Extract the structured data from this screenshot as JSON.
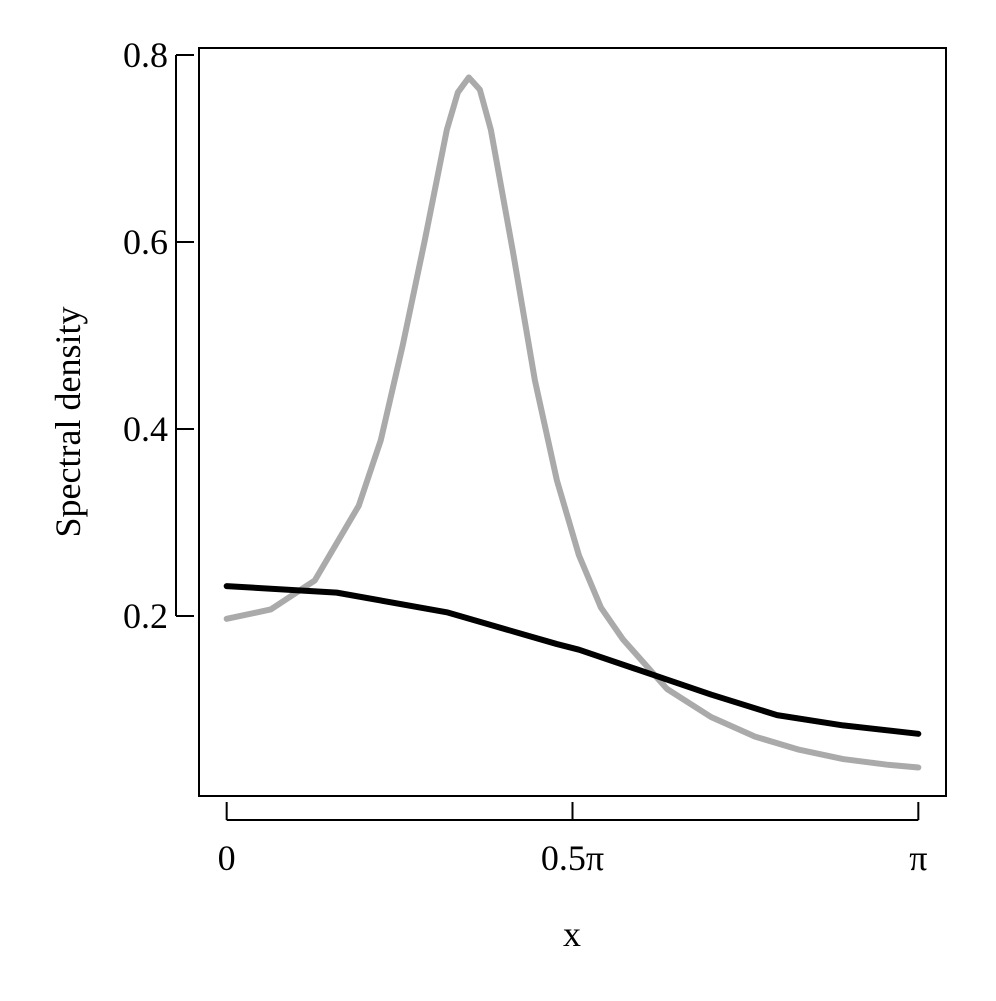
{
  "chart_data": {
    "type": "line",
    "xlabel": "x",
    "ylabel": "Spectral density",
    "xlim": [
      -0.1257,
      3.2673
    ],
    "ylim": [
      0.0075,
      0.8075
    ],
    "xticks": [
      {
        "value": 0,
        "label": "0"
      },
      {
        "value": 1.5708,
        "label": "0.5π"
      },
      {
        "value": 3.1416,
        "label": "π"
      }
    ],
    "yticks": [
      0.2,
      0.4,
      0.6,
      0.8
    ],
    "series": [
      {
        "color": "#aaaaaa",
        "x": [
          0,
          0.2,
          0.4,
          0.6,
          0.7,
          0.8,
          0.9,
          1.0,
          1.05,
          1.1,
          1.15,
          1.2,
          1.3,
          1.4,
          1.5,
          1.6,
          1.7,
          1.8,
          2.0,
          2.2,
          2.4,
          2.6,
          2.8,
          3.0,
          3.1416
        ],
        "values": [
          0.197,
          0.207,
          0.238,
          0.318,
          0.388,
          0.49,
          0.602,
          0.72,
          0.76,
          0.776,
          0.763,
          0.72,
          0.59,
          0.452,
          0.345,
          0.265,
          0.209,
          0.175,
          0.122,
          0.092,
          0.071,
          0.057,
          0.047,
          0.041,
          0.038
        ]
      },
      {
        "color": "#000000",
        "x": [
          0,
          0.5,
          1.0,
          1.5,
          1.6,
          2.0,
          2.2,
          2.5,
          2.8,
          3.1416
        ],
        "values": [
          0.232,
          0.225,
          0.204,
          0.17,
          0.164,
          0.132,
          0.116,
          0.094,
          0.083,
          0.074
        ]
      }
    ]
  }
}
